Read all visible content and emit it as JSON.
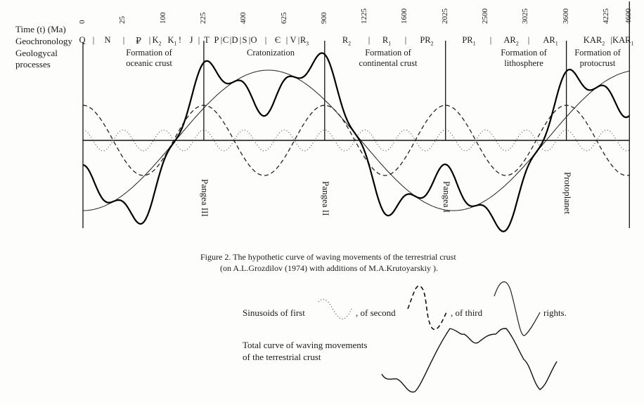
{
  "row_labels": {
    "time": "Time (t) (Ma)",
    "geochronology": "Geochronology",
    "processes_1": "Geologycal",
    "processes_2": "processes"
  },
  "chart_data": {
    "type": "line",
    "x_axis": {
      "label": "Time (t) (Ma)",
      "scale": "square-root",
      "ticks": [
        "0",
        "25",
        "100",
        "225",
        "400",
        "625",
        "900",
        "1225",
        "1600",
        "2025",
        "2500",
        "3025",
        "3600",
        "4225",
        "4600"
      ],
      "range": [
        0,
        4600
      ]
    },
    "y_axis": {
      "label": "",
      "units": "relative amplitude",
      "range": [
        -1.3,
        1.3
      ]
    },
    "grid": false,
    "geochronology": [
      {
        "text": "Q",
        "sub": ""
      },
      {
        "text": "|",
        "sub": ""
      },
      {
        "text": "N",
        "sub": ""
      },
      {
        "text": "|",
        "sub": ""
      },
      {
        "text": "₽",
        "sub": ""
      },
      {
        "text": "|",
        "sub": ""
      },
      {
        "text": "K",
        "sub": "2"
      },
      {
        "text": "K",
        "sub": "1"
      },
      {
        "text": "!",
        "sub": ""
      },
      {
        "text": "J",
        "sub": ""
      },
      {
        "text": "|",
        "sub": ""
      },
      {
        "text": "T",
        "sub": ""
      },
      {
        "text": "P",
        "sub": ""
      },
      {
        "text": "|",
        "sub": ""
      },
      {
        "text": "C",
        "sub": ""
      },
      {
        "text": "|",
        "sub": ""
      },
      {
        "text": "D",
        "sub": ""
      },
      {
        "text": "|",
        "sub": ""
      },
      {
        "text": "S",
        "sub": ""
      },
      {
        "text": "|",
        "sub": ""
      },
      {
        "text": "O",
        "sub": ""
      },
      {
        "text": "|",
        "sub": ""
      },
      {
        "text": "Є",
        "sub": ""
      },
      {
        "text": "|",
        "sub": ""
      },
      {
        "text": "V",
        "sub": ""
      },
      {
        "text": "|",
        "sub": ""
      },
      {
        "text": "R",
        "sub": "3"
      },
      {
        "text": "R",
        "sub": "2"
      },
      {
        "text": "|",
        "sub": ""
      },
      {
        "text": "R",
        "sub": "1"
      },
      {
        "text": "|",
        "sub": ""
      },
      {
        "text": "PR",
        "sub": "2"
      },
      {
        "text": "PR",
        "sub": "1"
      },
      {
        "text": "|",
        "sub": ""
      },
      {
        "text": "AR",
        "sub": "2"
      },
      {
        "text": "|",
        "sub": ""
      },
      {
        "text": "AR",
        "sub": "1"
      },
      {
        "text": "KAR",
        "sub": "2"
      },
      {
        "text": "|KAR",
        "sub": "1"
      }
    ],
    "processes": [
      {
        "line1": "Formation of",
        "line2": "oceanic crust"
      },
      {
        "line1": "Cratonization",
        "line2": ""
      },
      {
        "line1": "Formation of",
        "line2": "continental crust"
      },
      {
        "line1": "Formation of",
        "line2": "lithosphere"
      },
      {
        "line1": "Formation of",
        "line2": "protocrust"
      }
    ],
    "boundaries_ma": [
      0,
      225,
      900,
      2025,
      3600,
      4600
    ],
    "annotations": [
      {
        "text": "Pangea III",
        "x_ma": 225
      },
      {
        "text": "Pangea II",
        "x_ma": 900
      },
      {
        "text": "Pangea I",
        "x_ma": 2025
      },
      {
        "text": "Protoplanet",
        "x_ma": 3600
      }
    ],
    "series": [
      {
        "name": "first",
        "style": "dotted",
        "amplitude": 0.15,
        "period_tick_intervals": 1,
        "peak_at_tick_interval": 0
      },
      {
        "name": "second",
        "style": "dashed",
        "amplitude": 0.5,
        "period_tick_intervals": 3,
        "peak_at_tick_interval": 0
      },
      {
        "name": "third",
        "style": "thin-solid",
        "amplitude": 1.0,
        "period_tick_intervals": 9.2,
        "peak_at_tick_interval": 4.6
      },
      {
        "name": "Total curve of waving movements of the terrestrial crust",
        "style": "bold-solid",
        "sum_of": [
          "first",
          "second",
          "third"
        ]
      }
    ],
    "caption": {
      "line1": "Figure 2. The hypothetic curve of waving movements of the terrestrial crust",
      "line2": "(on A.L.Grozdilov (1974) with additions of M.A.Krutoyarskiy )."
    },
    "legend": {
      "sinusoids_prefix": "Sinusoids of first",
      "second": ", of second",
      "third": ", of third",
      "suffix": "rights.",
      "total_1": "Total curve of waving movements",
      "total_2": "of the terrestrial crust"
    }
  }
}
